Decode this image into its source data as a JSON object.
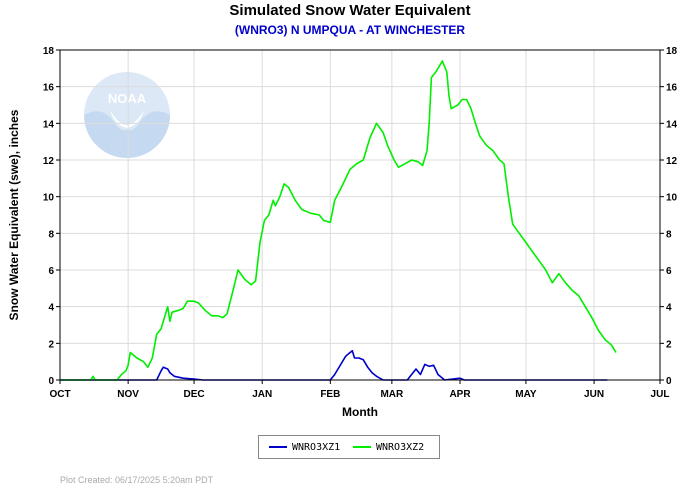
{
  "chart_data": {
    "type": "line",
    "title": "Simulated Snow Water Equivalent",
    "subtitle": "(WNRO3) N UMPQUA - AT WINCHESTER",
    "xlabel": "Month",
    "ylabel": "Snow Water Equivalent (swe),  inches",
    "ylim": [
      0,
      18
    ],
    "yticks": [
      0,
      2,
      4,
      6,
      8,
      10,
      12,
      14,
      16,
      18
    ],
    "xticks": [
      "OCT",
      "NOV",
      "DEC",
      "JAN",
      "FEB",
      "MAR",
      "APR",
      "MAY",
      "JUN",
      "JUL"
    ],
    "grid": true,
    "legend_position": "bottom-center",
    "series": [
      {
        "name": "WNRO3XZ1",
        "color": "#0000cc",
        "points": [
          [
            "2024-10-01",
            0
          ],
          [
            "2024-11-14",
            0
          ],
          [
            "2024-11-16",
            0.5
          ],
          [
            "2024-11-17",
            0.7
          ],
          [
            "2024-11-19",
            0.6
          ],
          [
            "2024-11-20",
            0.4
          ],
          [
            "2024-11-22",
            0.2
          ],
          [
            "2024-11-26",
            0.1
          ],
          [
            "2024-12-01",
            0.05
          ],
          [
            "2024-12-05",
            0
          ],
          [
            "2025-02-01",
            0
          ],
          [
            "2025-02-03",
            0.3
          ],
          [
            "2025-02-06",
            0.9
          ],
          [
            "2025-02-08",
            1.3
          ],
          [
            "2025-02-10",
            1.5
          ],
          [
            "2025-02-11",
            1.6
          ],
          [
            "2025-02-12",
            1.2
          ],
          [
            "2025-02-14",
            1.2
          ],
          [
            "2025-02-16",
            1.1
          ],
          [
            "2025-02-18",
            0.7
          ],
          [
            "2025-02-20",
            0.4
          ],
          [
            "2025-02-22",
            0.2
          ],
          [
            "2025-02-25",
            0
          ],
          [
            "2025-03-08",
            0
          ],
          [
            "2025-03-10",
            0.3
          ],
          [
            "2025-03-12",
            0.6
          ],
          [
            "2025-03-14",
            0.3
          ],
          [
            "2025-03-16",
            0.85
          ],
          [
            "2025-03-18",
            0.75
          ],
          [
            "2025-03-20",
            0.8
          ],
          [
            "2025-03-22",
            0.3
          ],
          [
            "2025-03-25",
            0
          ],
          [
            "2025-04-01",
            0.1
          ],
          [
            "2025-04-03",
            0
          ],
          [
            "2025-06-07",
            0
          ]
        ]
      },
      {
        "name": "WNRO3XZ2",
        "color": "#00ee00",
        "points": [
          [
            "2024-10-01",
            0
          ],
          [
            "2024-10-15",
            0
          ],
          [
            "2024-10-16",
            0.2
          ],
          [
            "2024-10-17",
            0
          ],
          [
            "2024-10-27",
            0
          ],
          [
            "2024-10-29",
            0.3
          ],
          [
            "2024-10-31",
            0.5
          ],
          [
            "2024-11-01",
            0.8
          ],
          [
            "2024-11-02",
            1.5
          ],
          [
            "2024-11-05",
            1.2
          ],
          [
            "2024-11-08",
            1.0
          ],
          [
            "2024-11-10",
            0.7
          ],
          [
            "2024-11-12",
            1.2
          ],
          [
            "2024-11-14",
            2.5
          ],
          [
            "2024-11-16",
            2.8
          ],
          [
            "2024-11-18",
            3.6
          ],
          [
            "2024-11-19",
            4.0
          ],
          [
            "2024-11-20",
            3.2
          ],
          [
            "2024-11-21",
            3.7
          ],
          [
            "2024-11-24",
            3.8
          ],
          [
            "2024-11-26",
            3.9
          ],
          [
            "2024-11-28",
            4.3
          ],
          [
            "2024-12-01",
            4.3
          ],
          [
            "2024-12-03",
            4.2
          ],
          [
            "2024-12-06",
            3.8
          ],
          [
            "2024-12-09",
            3.5
          ],
          [
            "2024-12-12",
            3.5
          ],
          [
            "2024-12-14",
            3.4
          ],
          [
            "2024-12-16",
            3.6
          ],
          [
            "2024-12-19",
            5.0
          ],
          [
            "2024-12-21",
            6.0
          ],
          [
            "2024-12-24",
            5.5
          ],
          [
            "2024-12-27",
            5.2
          ],
          [
            "2024-12-29",
            5.4
          ],
          [
            "2024-12-31",
            7.5
          ],
          [
            "2025-01-02",
            8.7
          ],
          [
            "2025-01-04",
            9.0
          ],
          [
            "2025-01-06",
            9.8
          ],
          [
            "2025-01-07",
            9.5
          ],
          [
            "2025-01-09",
            10.0
          ],
          [
            "2025-01-11",
            10.7
          ],
          [
            "2025-01-13",
            10.5
          ],
          [
            "2025-01-16",
            9.8
          ],
          [
            "2025-01-19",
            9.3
          ],
          [
            "2025-01-23",
            9.1
          ],
          [
            "2025-01-27",
            9.0
          ],
          [
            "2025-01-29",
            8.7
          ],
          [
            "2025-02-01",
            8.6
          ],
          [
            "2025-02-03",
            9.8
          ],
          [
            "2025-02-06",
            10.5
          ],
          [
            "2025-02-10",
            11.5
          ],
          [
            "2025-02-13",
            11.8
          ],
          [
            "2025-02-16",
            12.0
          ],
          [
            "2025-02-19",
            13.2
          ],
          [
            "2025-02-22",
            14.0
          ],
          [
            "2025-02-25",
            13.5
          ],
          [
            "2025-02-27",
            12.8
          ],
          [
            "2025-03-02",
            12.0
          ],
          [
            "2025-03-04",
            11.6
          ],
          [
            "2025-03-07",
            11.8
          ],
          [
            "2025-03-10",
            12.0
          ],
          [
            "2025-03-13",
            11.9
          ],
          [
            "2025-03-15",
            11.7
          ],
          [
            "2025-03-17",
            12.5
          ],
          [
            "2025-03-18",
            14.0
          ],
          [
            "2025-03-19",
            16.5
          ],
          [
            "2025-03-21",
            16.8
          ],
          [
            "2025-03-23",
            17.2
          ],
          [
            "2025-03-24",
            17.4
          ],
          [
            "2025-03-26",
            16.8
          ],
          [
            "2025-03-27",
            15.5
          ],
          [
            "2025-03-28",
            14.8
          ],
          [
            "2025-03-31",
            15.0
          ],
          [
            "2025-04-02",
            15.3
          ],
          [
            "2025-04-04",
            15.3
          ],
          [
            "2025-04-06",
            14.8
          ],
          [
            "2025-04-08",
            14.0
          ],
          [
            "2025-04-10",
            13.3
          ],
          [
            "2025-04-13",
            12.8
          ],
          [
            "2025-04-16",
            12.5
          ],
          [
            "2025-04-19",
            12.0
          ],
          [
            "2025-04-21",
            11.8
          ],
          [
            "2025-04-23",
            10.0
          ],
          [
            "2025-04-25",
            8.5
          ],
          [
            "2025-04-28",
            8.0
          ],
          [
            "2025-05-01",
            7.5
          ],
          [
            "2025-05-04",
            7.0
          ],
          [
            "2025-05-07",
            6.5
          ],
          [
            "2025-05-10",
            6.0
          ],
          [
            "2025-05-13",
            5.3
          ],
          [
            "2025-05-16",
            5.8
          ],
          [
            "2025-05-19",
            5.3
          ],
          [
            "2025-05-22",
            4.9
          ],
          [
            "2025-05-25",
            4.6
          ],
          [
            "2025-05-28",
            4.0
          ],
          [
            "2025-05-31",
            3.4
          ],
          [
            "2025-06-03",
            2.7
          ],
          [
            "2025-06-06",
            2.2
          ],
          [
            "2025-06-09",
            1.9
          ],
          [
            "2025-06-11",
            1.5
          ]
        ]
      }
    ]
  },
  "footer": {
    "plot_created": "Plot Created:  06/17/2025 5:20am PDT"
  },
  "logo": {
    "text": "NOAA",
    "name": "noaa-logo"
  }
}
